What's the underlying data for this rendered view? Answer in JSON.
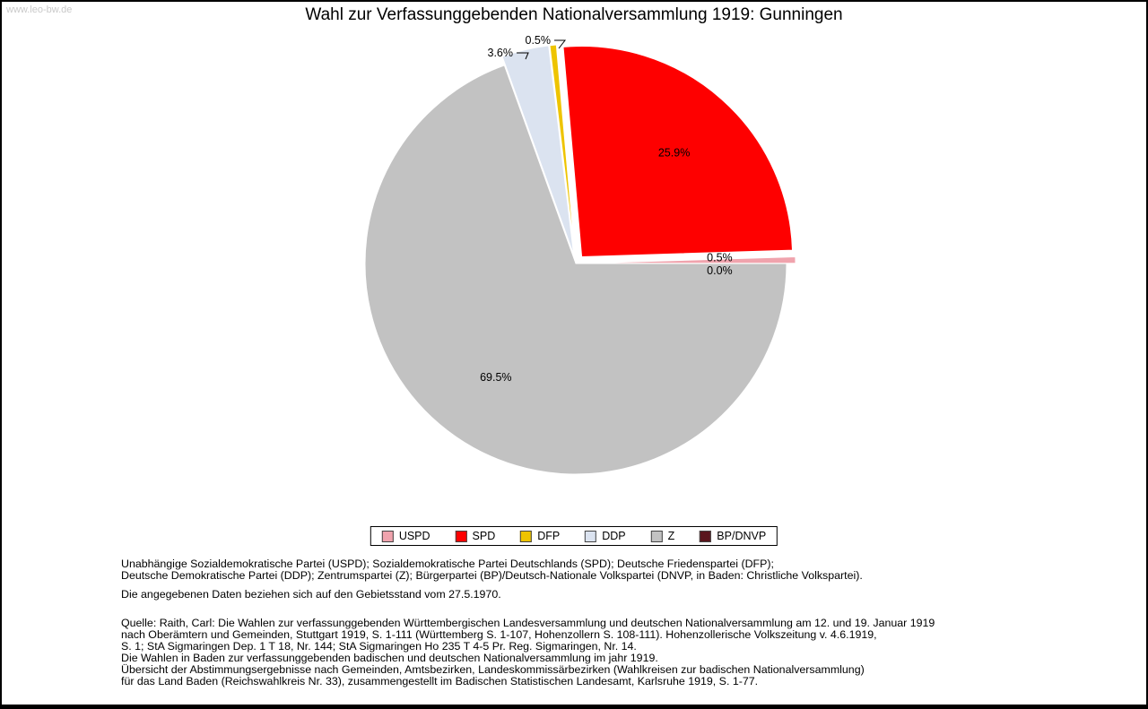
{
  "page": {
    "watermark": "www.leo-bw.de",
    "title": "Wahl zur Verfassunggebenden Nationalversammlung 1919: Gunningen"
  },
  "chart_data": {
    "type": "pie",
    "title": "Wahl zur Verfassunggebenden Nationalversammlung 1919: Gunningen",
    "legend_position": "bottom",
    "start_angle_deg": 0,
    "direction": "counterclockwise",
    "slices": [
      {
        "label": "USPD",
        "value": 0.5,
        "percent_label": "0.5%",
        "color": "#f0a3ad",
        "exploded": true
      },
      {
        "label": "SPD",
        "value": 25.9,
        "percent_label": "25.9%",
        "color": "#fe0000",
        "exploded": true
      },
      {
        "label": "DFP",
        "value": 0.5,
        "percent_label": "0.5%",
        "color": "#eec400",
        "exploded": true
      },
      {
        "label": "DDP",
        "value": 3.6,
        "percent_label": "3.6%",
        "color": "#dbe3f0",
        "exploded": true
      },
      {
        "label": "Z",
        "value": 69.5,
        "percent_label": "69.5%",
        "color": "#c2c2c2",
        "exploded": false
      },
      {
        "label": "BP/DNVP",
        "value": 0.0,
        "percent_label": "0.0%",
        "color": "#5a161d",
        "exploded": true
      }
    ]
  },
  "footnotes": {
    "party_lines": [
      "Unabhängige Sozialdemokratische Partei (USPD); Sozialdemokratische Partei Deutschlands (SPD); Deutsche Friedenspartei (DFP);",
      "Deutsche Demokratische Partei (DDP); Zentrumspartei (Z); Bürgerpartei (BP)/Deutsch-Nationale Volkspartei (DNVP, in Baden: Christliche Volkspartei)."
    ],
    "note": "Die angegebenen Daten beziehen sich auf den Gebietsstand vom 27.5.1970.",
    "source_lines": [
      "Quelle: Raith, Carl: Die Wahlen zur verfassunggebenden Württembergischen Landesversammlung und deutschen Nationalversammlung am 12. und 19. Januar 1919",
      "nach Oberämtern und Gemeinden, Stuttgart 1919, S. 1-111 (Württemberg S. 1-107, Hohenzollern S. 108-111). Hohenzollerische Volkszeitung v. 4.6.1919,",
      "S. 1; StA Sigmaringen Dep. 1 T 18, Nr. 144; StA Sigmaringen Ho 235 T 4-5 Pr. Reg. Sigmaringen, Nr. 14.",
      "Die Wahlen in Baden zur verfassunggebenden badischen und deutschen Nationalversammlung im jahr 1919.",
      "Übersicht der Abstimmungsergebnisse nach Gemeinden, Amtsbezirken, Landeskommissärbezirken (Wahlkreisen zur badischen Nationalversammlung)",
      "für das Land Baden (Reichswahlkreis Nr. 33), zusammengestellt im Badischen Statistischen Landesamt, Karlsruhe 1919, S. 1-77."
    ]
  }
}
